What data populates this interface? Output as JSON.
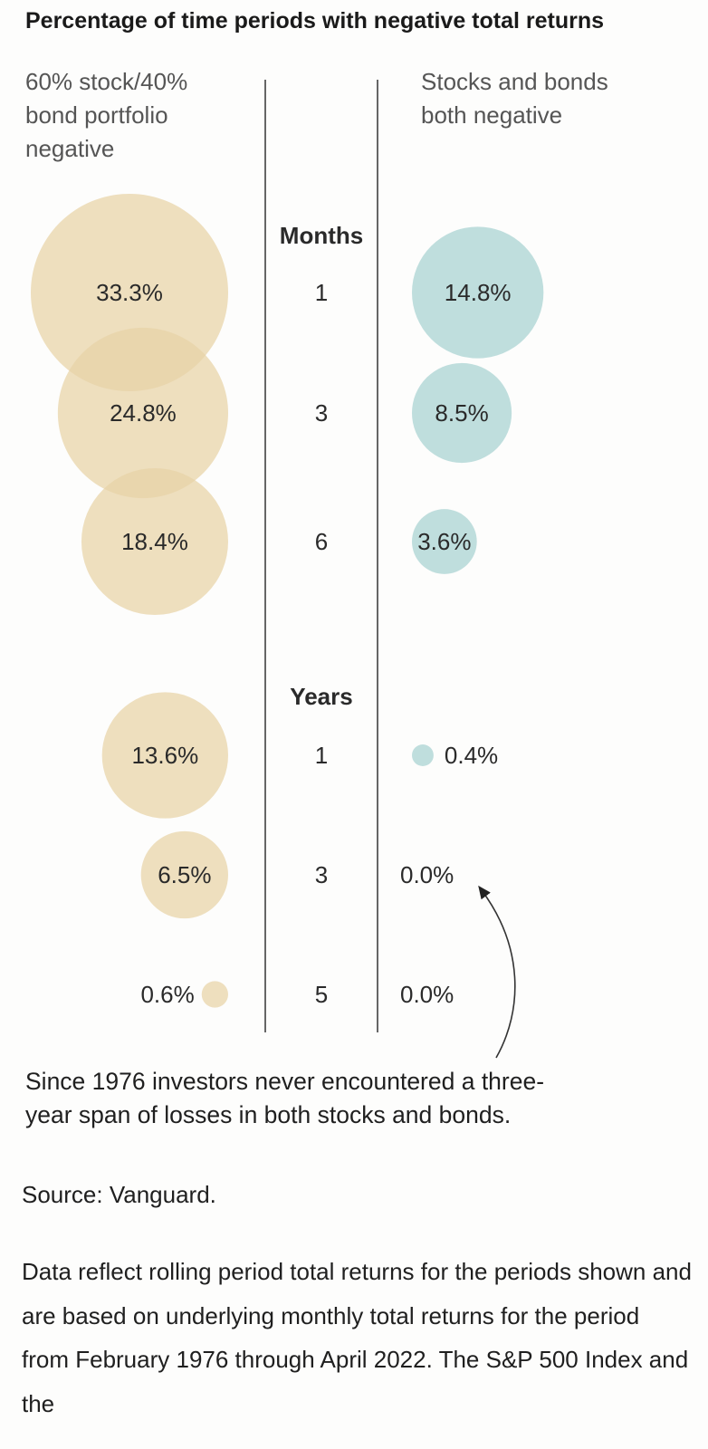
{
  "title": "Percentage of time periods with negative total returns",
  "left_header": "60% stock/40% bond portfolio negative",
  "right_header": "Stocks and bonds both negative",
  "chart_data": {
    "type": "bubble",
    "colors": {
      "portfolio": "#e7d3a6",
      "both": "#a9d3d3",
      "axis": "#666666"
    },
    "series": [
      {
        "name": "60% stock/40% bond portfolio negative",
        "key": "portfolio"
      },
      {
        "name": "Stocks and bonds both negative",
        "key": "both"
      }
    ],
    "groups": [
      {
        "label": "Months",
        "rows": [
          {
            "period": "1",
            "portfolio": 33.3,
            "portfolio_label": "33.3%",
            "both": 14.8,
            "both_label": "14.8%"
          },
          {
            "period": "3",
            "portfolio": 24.8,
            "portfolio_label": "24.8%",
            "both": 8.5,
            "both_label": "8.5%"
          },
          {
            "period": "6",
            "portfolio": 18.4,
            "portfolio_label": "18.4%",
            "both": 3.6,
            "both_label": "3.6%"
          }
        ]
      },
      {
        "label": "Years",
        "rows": [
          {
            "period": "1",
            "portfolio": 13.6,
            "portfolio_label": "13.6%",
            "both": 0.4,
            "both_label": "0.4%"
          },
          {
            "period": "3",
            "portfolio": 6.5,
            "portfolio_label": "6.5%",
            "both": 0.0,
            "both_label": "0.0%"
          },
          {
            "period": "5",
            "portfolio": 0.6,
            "portfolio_label": "0.6%",
            "both": 0.0,
            "both_label": "0.0%"
          }
        ]
      }
    ]
  },
  "annotation": "Since 1976 investors never encountered a three-year span of losses in both stocks and bonds.",
  "source": "Source: Vanguard.",
  "footnote": "Data reflect rolling period total returns for the periods shown and are based on underlying monthly total returns for the period from February 1976 through April 2022. The S&P 500 Index and the"
}
